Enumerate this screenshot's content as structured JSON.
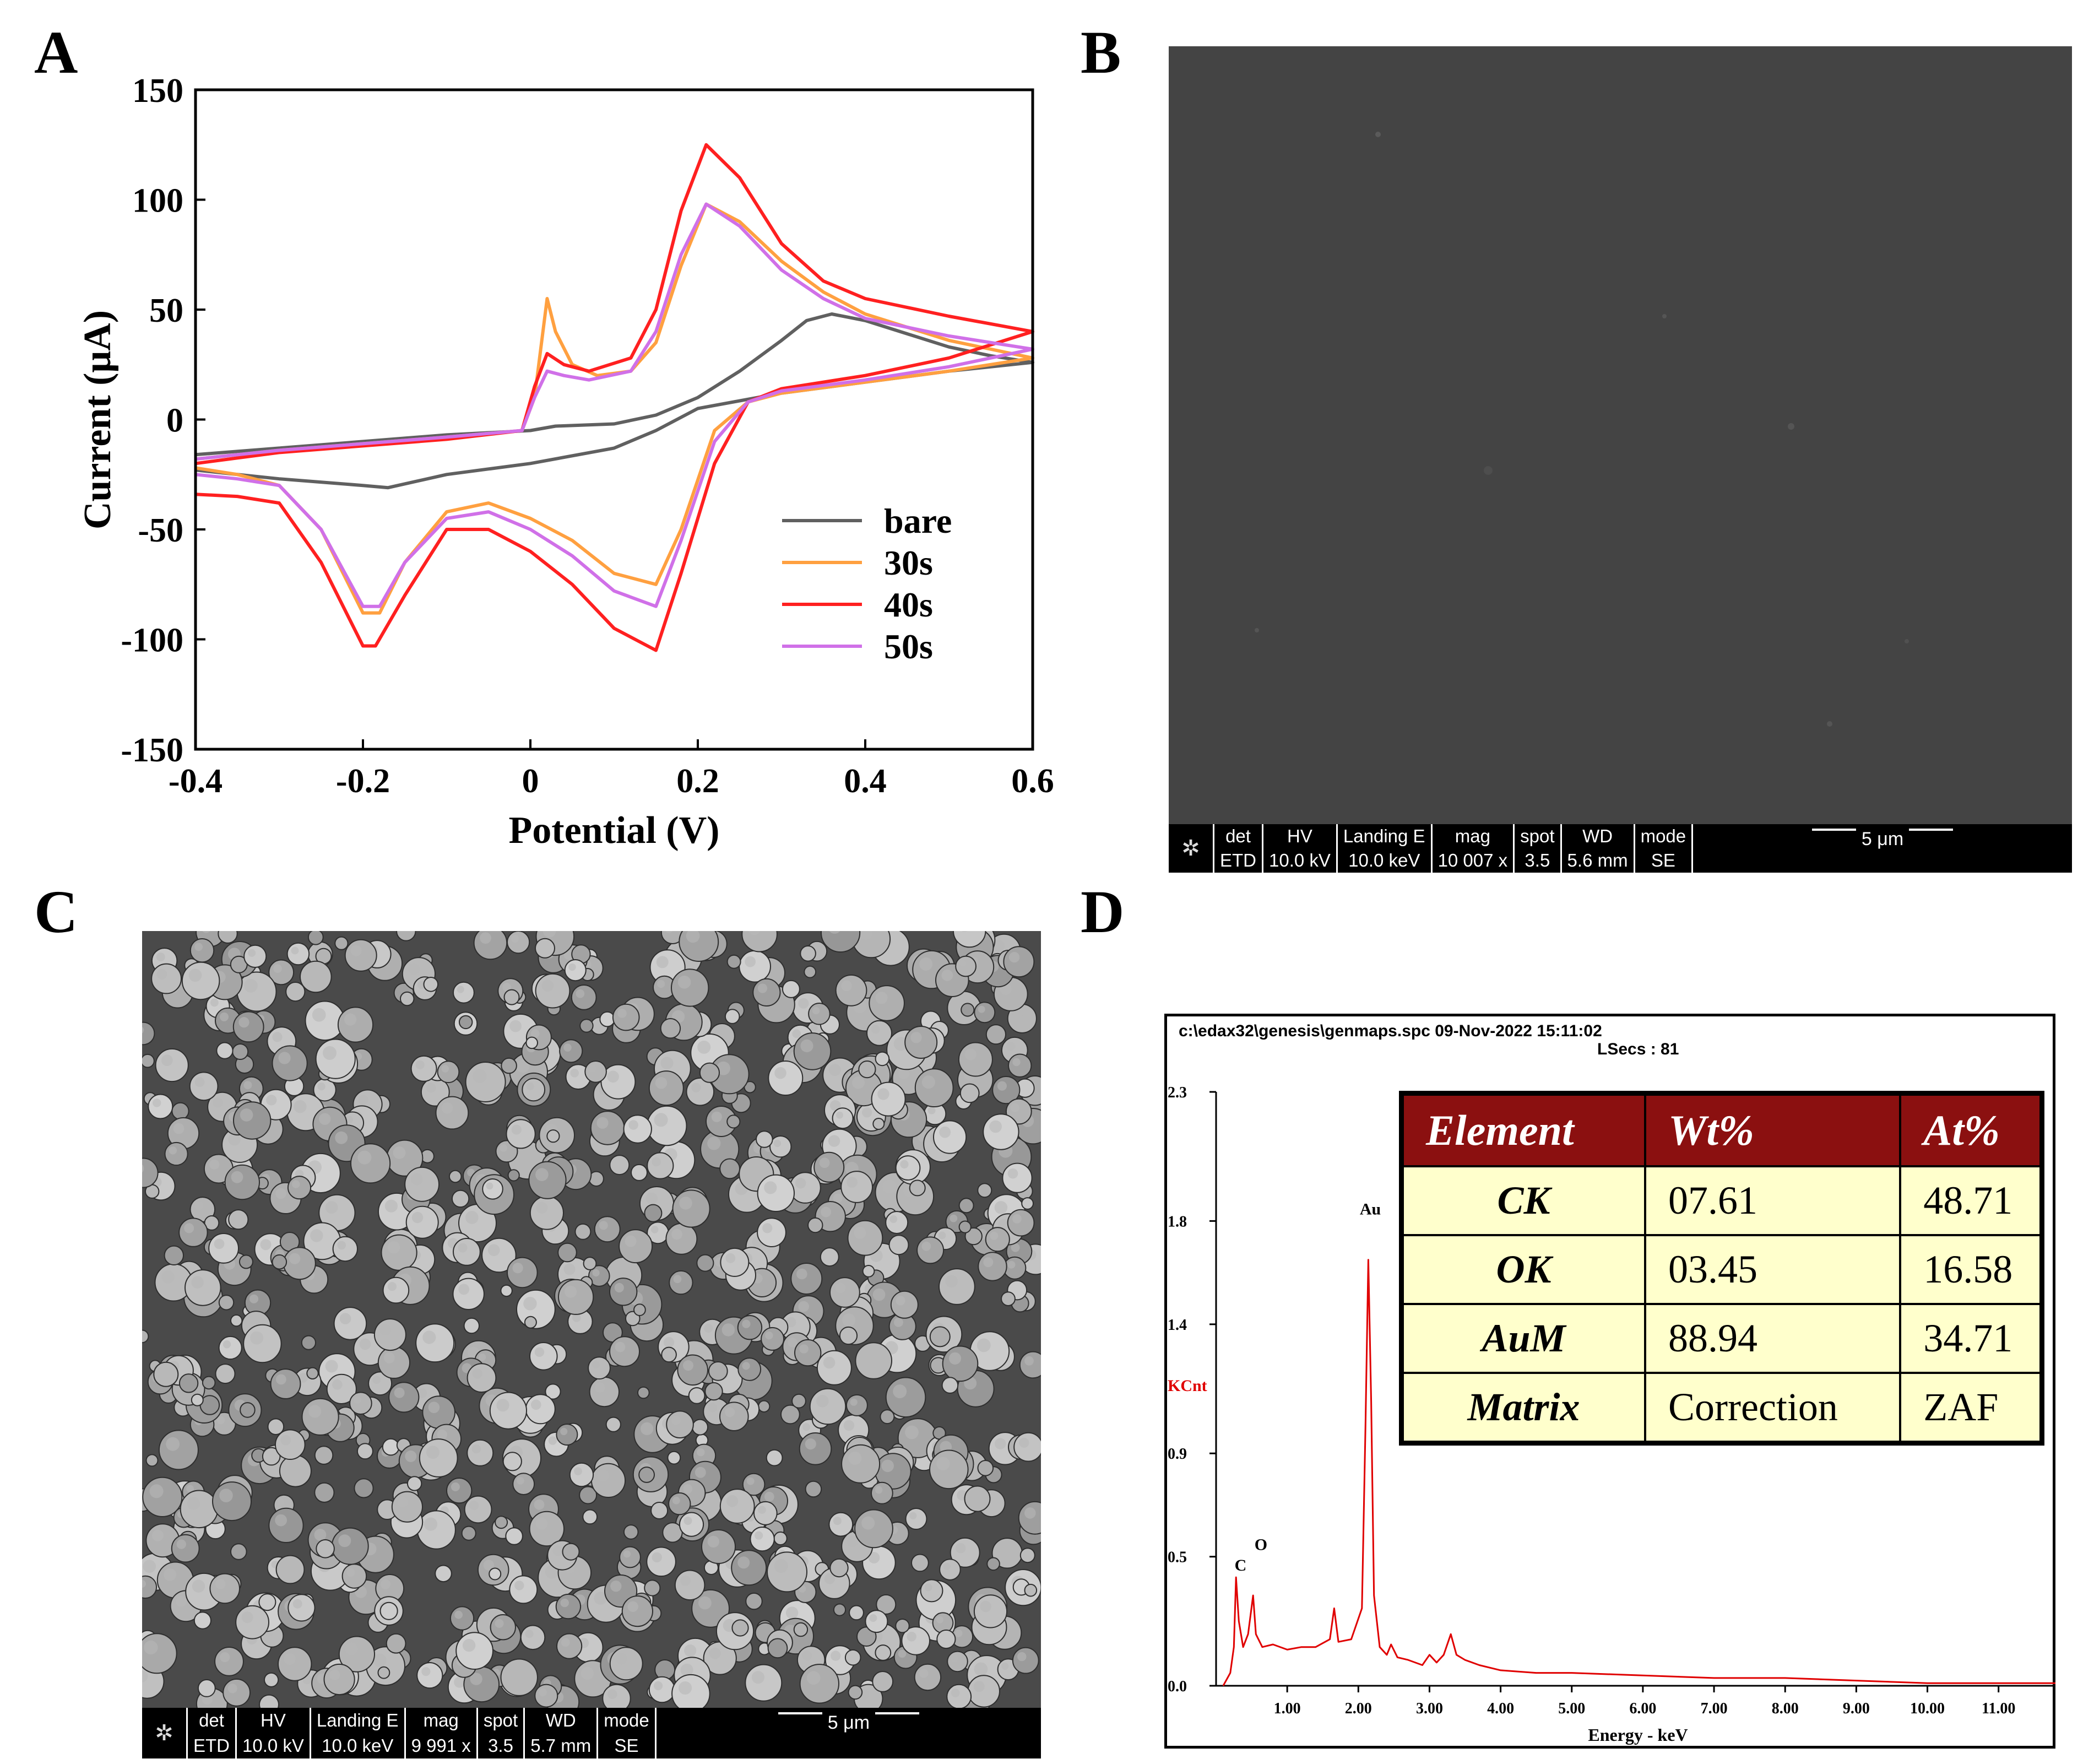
{
  "panels": {
    "a": "A",
    "b": "B",
    "c": "C",
    "d": "D"
  },
  "chart_data": {
    "type": "line",
    "title": "",
    "xlabel": "Potential (V)",
    "ylabel": "Current (μA)",
    "xlim": [
      -0.4,
      0.6
    ],
    "ylim": [
      -150,
      150
    ],
    "xticks": [
      "-0.4",
      "-0.2",
      "0",
      "0.2",
      "0.4",
      "0.6"
    ],
    "yticks": [
      "150",
      "100",
      "50",
      "0",
      "-50",
      "-100",
      "-150"
    ],
    "legend_position": "lower-right",
    "series": [
      {
        "name": "bare",
        "color": "#606060",
        "forward": [
          [
            -0.4,
            -16
          ],
          [
            -0.3,
            -13
          ],
          [
            -0.2,
            -10
          ],
          [
            -0.1,
            -7
          ],
          [
            0.0,
            -5
          ],
          [
            0.03,
            -3
          ],
          [
            0.1,
            -2
          ],
          [
            0.15,
            2
          ],
          [
            0.2,
            10
          ],
          [
            0.25,
            22
          ],
          [
            0.3,
            36
          ],
          [
            0.33,
            45
          ],
          [
            0.36,
            48
          ],
          [
            0.4,
            45
          ],
          [
            0.45,
            39
          ],
          [
            0.5,
            33
          ],
          [
            0.55,
            29
          ],
          [
            0.6,
            26
          ]
        ],
        "reverse": [
          [
            0.6,
            27
          ],
          [
            0.5,
            22
          ],
          [
            0.4,
            17
          ],
          [
            0.3,
            12
          ],
          [
            0.2,
            5
          ],
          [
            0.15,
            -5
          ],
          [
            0.1,
            -13
          ],
          [
            0.0,
            -20
          ],
          [
            -0.1,
            -25
          ],
          [
            -0.17,
            -31
          ],
          [
            -0.2,
            -30
          ],
          [
            -0.3,
            -27
          ],
          [
            -0.4,
            -23
          ]
        ]
      },
      {
        "name": "30s",
        "color": "#ffa040",
        "forward": [
          [
            -0.4,
            -18
          ],
          [
            -0.3,
            -14
          ],
          [
            -0.2,
            -11
          ],
          [
            -0.1,
            -8
          ],
          [
            -0.01,
            -5
          ],
          [
            0.005,
            10
          ],
          [
            0.02,
            55
          ],
          [
            0.03,
            40
          ],
          [
            0.05,
            25
          ],
          [
            0.08,
            20
          ],
          [
            0.12,
            22
          ],
          [
            0.15,
            35
          ],
          [
            0.18,
            70
          ],
          [
            0.21,
            98
          ],
          [
            0.25,
            90
          ],
          [
            0.3,
            72
          ],
          [
            0.35,
            58
          ],
          [
            0.4,
            48
          ],
          [
            0.5,
            36
          ],
          [
            0.6,
            28
          ]
        ],
        "reverse": [
          [
            0.6,
            26
          ],
          [
            0.5,
            22
          ],
          [
            0.4,
            17
          ],
          [
            0.3,
            12
          ],
          [
            0.26,
            8
          ],
          [
            0.22,
            -5
          ],
          [
            0.18,
            -50
          ],
          [
            0.15,
            -75
          ],
          [
            0.1,
            -70
          ],
          [
            0.05,
            -55
          ],
          [
            0.0,
            -45
          ],
          [
            -0.05,
            -38
          ],
          [
            -0.1,
            -42
          ],
          [
            -0.15,
            -65
          ],
          [
            -0.18,
            -88
          ],
          [
            -0.2,
            -88
          ],
          [
            -0.25,
            -50
          ],
          [
            -0.3,
            -30
          ],
          [
            -0.35,
            -25
          ],
          [
            -0.4,
            -22
          ]
        ]
      },
      {
        "name": "40s",
        "color": "#ff2020",
        "forward": [
          [
            -0.4,
            -20
          ],
          [
            -0.3,
            -15
          ],
          [
            -0.2,
            -12
          ],
          [
            -0.1,
            -9
          ],
          [
            -0.01,
            -5
          ],
          [
            0.005,
            15
          ],
          [
            0.02,
            30
          ],
          [
            0.04,
            25
          ],
          [
            0.07,
            22
          ],
          [
            0.12,
            28
          ],
          [
            0.15,
            50
          ],
          [
            0.18,
            95
          ],
          [
            0.21,
            125
          ],
          [
            0.25,
            110
          ],
          [
            0.3,
            80
          ],
          [
            0.35,
            63
          ],
          [
            0.4,
            55
          ],
          [
            0.5,
            47
          ],
          [
            0.6,
            40
          ]
        ],
        "reverse": [
          [
            0.6,
            37
          ],
          [
            0.5,
            28
          ],
          [
            0.4,
            20
          ],
          [
            0.3,
            14
          ],
          [
            0.26,
            8
          ],
          [
            0.22,
            -20
          ],
          [
            0.18,
            -70
          ],
          [
            0.15,
            -105
          ],
          [
            0.1,
            -95
          ],
          [
            0.05,
            -75
          ],
          [
            0.0,
            -60
          ],
          [
            -0.05,
            -50
          ],
          [
            -0.1,
            -50
          ],
          [
            -0.15,
            -80
          ],
          [
            -0.185,
            -103
          ],
          [
            -0.2,
            -103
          ],
          [
            -0.25,
            -65
          ],
          [
            -0.3,
            -38
          ],
          [
            -0.35,
            -35
          ],
          [
            -0.4,
            -34
          ]
        ]
      },
      {
        "name": "50s",
        "color": "#d070e8",
        "forward": [
          [
            -0.4,
            -18
          ],
          [
            -0.3,
            -14
          ],
          [
            -0.2,
            -11
          ],
          [
            -0.1,
            -8
          ],
          [
            -0.01,
            -5
          ],
          [
            0.005,
            10
          ],
          [
            0.02,
            22
          ],
          [
            0.04,
            20
          ],
          [
            0.07,
            18
          ],
          [
            0.12,
            22
          ],
          [
            0.15,
            40
          ],
          [
            0.18,
            75
          ],
          [
            0.21,
            98
          ],
          [
            0.25,
            88
          ],
          [
            0.3,
            68
          ],
          [
            0.35,
            55
          ],
          [
            0.4,
            46
          ],
          [
            0.5,
            38
          ],
          [
            0.6,
            32
          ]
        ],
        "reverse": [
          [
            0.6,
            30
          ],
          [
            0.5,
            24
          ],
          [
            0.4,
            18
          ],
          [
            0.3,
            13
          ],
          [
            0.26,
            8
          ],
          [
            0.22,
            -10
          ],
          [
            0.18,
            -55
          ],
          [
            0.15,
            -85
          ],
          [
            0.1,
            -78
          ],
          [
            0.05,
            -62
          ],
          [
            0.0,
            -50
          ],
          [
            -0.05,
            -42
          ],
          [
            -0.1,
            -45
          ],
          [
            -0.15,
            -65
          ],
          [
            -0.18,
            -85
          ],
          [
            -0.2,
            -85
          ],
          [
            -0.25,
            -50
          ],
          [
            -0.3,
            -30
          ],
          [
            -0.35,
            -27
          ],
          [
            -0.4,
            -25
          ]
        ]
      }
    ]
  },
  "sem_b": {
    "headers": [
      "det",
      "HV",
      "Landing E",
      "mag",
      "spot",
      "WD",
      "mode"
    ],
    "values": [
      "ETD",
      "10.0 kV",
      "10.0 keV",
      "10 007 x",
      "3.5",
      "5.6 mm",
      "SE"
    ],
    "scale": "5 μm",
    "background": "#444444"
  },
  "sem_c": {
    "headers": [
      "det",
      "HV",
      "Landing E",
      "mag",
      "spot",
      "WD",
      "mode"
    ],
    "values": [
      "ETD",
      "10.0 kV",
      "10.0 keV",
      "9 991 x",
      "3.5",
      "5.7 mm",
      "SE"
    ],
    "scale": "5 μm",
    "background": "#4a4a4a",
    "particle_color": "#b8b8b8"
  },
  "edx": {
    "file_line": "c:\\edax32\\genesis\\genmaps.spc  09-Nov-2022 15:11:02",
    "lsecs": "LSecs :  81",
    "ylabel": "KCnt",
    "xlabel": "Energy - keV",
    "yticks": [
      "2.3",
      "1.8",
      "1.4",
      "0.9",
      "0.5",
      "0.0"
    ],
    "xticks": [
      "1.00",
      "2.00",
      "3.00",
      "4.00",
      "5.00",
      "6.00",
      "7.00",
      "8.00",
      "9.00",
      "10.00",
      "11.00"
    ],
    "peak_labels": [
      "C",
      "O",
      "Au"
    ],
    "spectrum_color": "#e00000",
    "spectrum": [
      [
        0.1,
        0.0
      ],
      [
        0.2,
        0.05
      ],
      [
        0.25,
        0.15
      ],
      [
        0.28,
        0.42
      ],
      [
        0.32,
        0.25
      ],
      [
        0.38,
        0.15
      ],
      [
        0.45,
        0.2
      ],
      [
        0.52,
        0.35
      ],
      [
        0.56,
        0.2
      ],
      [
        0.65,
        0.15
      ],
      [
        0.8,
        0.16
      ],
      [
        1.0,
        0.14
      ],
      [
        1.2,
        0.15
      ],
      [
        1.4,
        0.15
      ],
      [
        1.6,
        0.18
      ],
      [
        1.66,
        0.3
      ],
      [
        1.72,
        0.17
      ],
      [
        1.9,
        0.18
      ],
      [
        2.05,
        0.3
      ],
      [
        2.1,
        1.0
      ],
      [
        2.14,
        1.65
      ],
      [
        2.18,
        1.1
      ],
      [
        2.22,
        0.35
      ],
      [
        2.3,
        0.15
      ],
      [
        2.4,
        0.12
      ],
      [
        2.46,
        0.16
      ],
      [
        2.55,
        0.11
      ],
      [
        2.7,
        0.1
      ],
      [
        2.9,
        0.08
      ],
      [
        3.0,
        0.12
      ],
      [
        3.1,
        0.09
      ],
      [
        3.2,
        0.12
      ],
      [
        3.3,
        0.2
      ],
      [
        3.38,
        0.12
      ],
      [
        3.5,
        0.1
      ],
      [
        3.7,
        0.08
      ],
      [
        4.0,
        0.06
      ],
      [
        4.5,
        0.05
      ],
      [
        5.0,
        0.05
      ],
      [
        6.0,
        0.04
      ],
      [
        7.0,
        0.03
      ],
      [
        8.0,
        0.03
      ],
      [
        9.0,
        0.02
      ],
      [
        10.0,
        0.01
      ],
      [
        11.0,
        0.01
      ],
      [
        11.8,
        0.01
      ]
    ],
    "table": {
      "headers": [
        "Element",
        "Wt%",
        "At%"
      ],
      "rows": [
        [
          "CK",
          "07.61",
          "48.71"
        ],
        [
          "OK",
          "03.45",
          "16.58"
        ],
        [
          "AuM",
          "88.94",
          "34.71"
        ],
        [
          "Matrix",
          "Correction",
          "ZAF"
        ]
      ]
    }
  }
}
